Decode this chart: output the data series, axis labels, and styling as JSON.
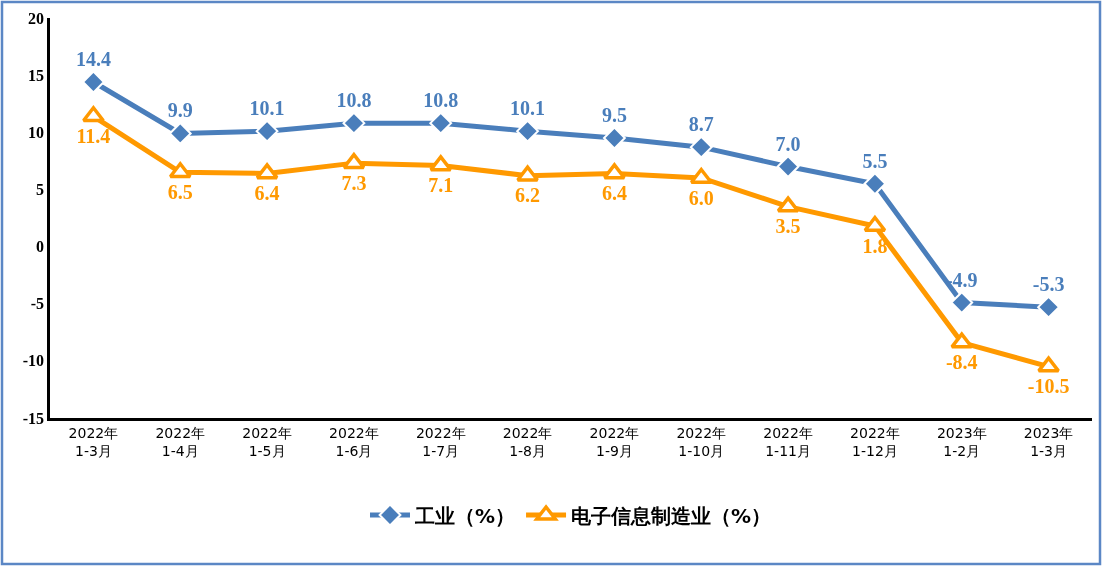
{
  "chart_data": {
    "type": "line",
    "categories": [
      "2022年\n1-3月",
      "2022年\n1-4月",
      "2022年\n1-5月",
      "2022年\n1-6月",
      "2022年\n1-7月",
      "2022年\n1-8月",
      "2022年\n1-9月",
      "2022年\n1-10月",
      "2022年\n1-11月",
      "2022年\n1-12月",
      "2023年\n1-2月",
      "2023年\n1-3月"
    ],
    "ylim": [
      -15,
      20
    ],
    "yticks": [
      -15,
      -10,
      -5,
      0,
      5,
      10,
      15,
      20
    ],
    "grid": false,
    "legend": "bottom",
    "line_style": "solid",
    "series": [
      {
        "name": "工业（%）",
        "color": "#4a7ebb",
        "marker": "diamond",
        "values": [
          14.4,
          9.9,
          10.1,
          10.8,
          10.8,
          10.1,
          9.5,
          8.7,
          7.0,
          5.5,
          -4.9,
          -5.3
        ],
        "value_labels": [
          "14.4",
          "9.9",
          "10.1",
          "10.8",
          "10.8",
          "10.1",
          "9.5",
          "8.7",
          "7.0",
          "5.5",
          "-4.9",
          "-5.3"
        ]
      },
      {
        "name": "电子信息制造业（%）",
        "color": "#ff9900",
        "marker": "triangle",
        "values": [
          11.4,
          6.5,
          6.4,
          7.3,
          7.1,
          6.2,
          6.4,
          6.0,
          3.5,
          1.8,
          -8.4,
          -10.5
        ],
        "value_labels": [
          "11.4",
          "6.5",
          "6.4",
          "7.3",
          "7.1",
          "6.2",
          "6.4",
          "6.0",
          "3.5",
          "1.8",
          "-8.4",
          "-10.5"
        ]
      }
    ]
  }
}
